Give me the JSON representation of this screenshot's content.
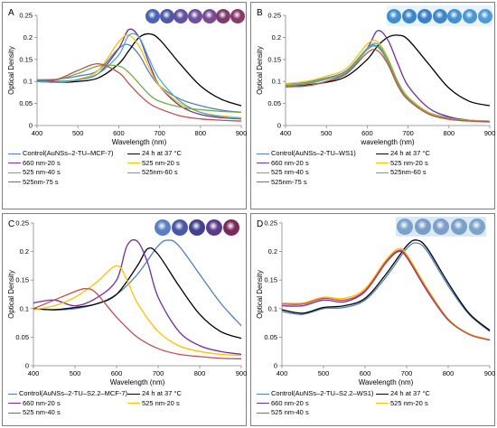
{
  "figure": {
    "panels": [
      {
        "label": "A",
        "box": "tl",
        "plot_bg": "#ffffff",
        "well_bg": "#ffffff",
        "well_colors": [
          "#4a63b8",
          "#4d5aa8",
          "#6350a0",
          "#6f4f9c",
          "#7a4a95",
          "#7d3b6e",
          "#8a3a6a"
        ]
      },
      {
        "label": "B",
        "box": "tr",
        "plot_bg": "#ffffff",
        "well_bg": "#e8f3fb",
        "well_colors": [
          "#3d8fd0",
          "#3a86c9",
          "#3b7fc6",
          "#3d86cc",
          "#4390d2",
          "#4a97d6",
          "#4c9bd8"
        ]
      },
      {
        "label": "C",
        "box": "bl",
        "plot_bg": "#ffffff",
        "well_bg": "#ffffff",
        "well_colors": [
          "#5a7fc4",
          "#4b58a8",
          "#42438f",
          "#5a3c8a",
          "#7a2a5a"
        ]
      },
      {
        "label": "D",
        "box": "br",
        "plot_bg": "#ffffff",
        "well_bg": "#dbe9f5",
        "well_colors": [
          "#7aa2cc",
          "#7a9dc8",
          "#7c9ec9",
          "#7aa0ca",
          "#7ba3cc"
        ]
      }
    ]
  },
  "chart_data": [
    {
      "type": "line",
      "panel": "A",
      "xlabel": "Wavelength (nm)",
      "ylabel": "Optical Density",
      "xlim": [
        400,
        900
      ],
      "ylim": [
        0,
        0.25
      ],
      "xticks": [
        "400",
        "500",
        "600",
        "700",
        "800",
        "900"
      ],
      "yticks": [
        "0",
        "0.05",
        "0.1",
        "0.15",
        "0.2",
        "0.25"
      ],
      "grid": false,
      "legend_placement": "bottom",
      "series": [
        {
          "name": "Control(AuNSs–2-TU–MCF-7)",
          "color": "#4f81bd",
          "x": [
            400,
            450,
            500,
            550,
            600,
            625,
            650,
            675,
            700,
            750,
            800,
            850,
            900
          ],
          "y": [
            0.104,
            0.105,
            0.112,
            0.125,
            0.175,
            0.183,
            0.16,
            0.12,
            0.09,
            0.06,
            0.045,
            0.035,
            0.03
          ]
        },
        {
          "name": "24 h at 37 °C",
          "color": "#000000",
          "x": [
            400,
            450,
            500,
            550,
            600,
            625,
            650,
            675,
            700,
            750,
            800,
            850,
            900
          ],
          "y": [
            0.1,
            0.098,
            0.1,
            0.108,
            0.14,
            0.17,
            0.2,
            0.208,
            0.195,
            0.14,
            0.09,
            0.06,
            0.045
          ]
        },
        {
          "name": "660 nm-20 s",
          "color": "#7030a0",
          "x": [
            400,
            450,
            500,
            550,
            600,
            625,
            650,
            675,
            700,
            750,
            800,
            850,
            900
          ],
          "y": [
            0.102,
            0.1,
            0.104,
            0.118,
            0.175,
            0.218,
            0.2,
            0.14,
            0.09,
            0.045,
            0.025,
            0.018,
            0.015
          ]
        },
        {
          "name": "525 nm-20 s",
          "color": "#ffc000",
          "x": [
            400,
            450,
            500,
            550,
            600,
            625,
            650,
            675,
            700,
            750,
            800,
            850,
            900
          ],
          "y": [
            0.1,
            0.098,
            0.105,
            0.125,
            0.19,
            0.205,
            0.18,
            0.13,
            0.09,
            0.05,
            0.03,
            0.022,
            0.018
          ]
        },
        {
          "name": "525 nm-40 s",
          "color": "#4bacc6",
          "x": [
            400,
            450,
            500,
            550,
            600,
            625,
            650,
            675,
            700,
            750,
            800,
            850,
            900
          ],
          "y": [
            0.1,
            0.098,
            0.104,
            0.118,
            0.16,
            0.205,
            0.2,
            0.15,
            0.105,
            0.055,
            0.03,
            0.02,
            0.016
          ]
        },
        {
          "name": "525nm-60 s",
          "color": "#70ad47",
          "x": [
            400,
            450,
            500,
            550,
            600,
            625,
            650,
            675,
            700,
            750,
            800,
            850,
            900
          ],
          "y": [
            0.102,
            0.104,
            0.118,
            0.135,
            0.135,
            0.12,
            0.095,
            0.07,
            0.055,
            0.042,
            0.036,
            0.032,
            0.03
          ]
        },
        {
          "name": "525nm-75 s",
          "color": "#c0504d",
          "x": [
            400,
            450,
            500,
            550,
            600,
            625,
            650,
            675,
            700,
            750,
            800,
            850,
            900
          ],
          "y": [
            0.101,
            0.105,
            0.125,
            0.14,
            0.12,
            0.095,
            0.07,
            0.05,
            0.038,
            0.022,
            0.015,
            0.012,
            0.01
          ]
        }
      ]
    },
    {
      "type": "line",
      "panel": "B",
      "xlabel": "wavelength (nm)",
      "ylabel": "Optical Density",
      "xlim": [
        400,
        900
      ],
      "ylim": [
        0,
        0.25
      ],
      "xticks": [
        "400",
        "500",
        "600",
        "700",
        "800",
        "900"
      ],
      "yticks": [
        "0",
        "0.05",
        "0.1",
        "0.15",
        "0.2",
        "0.25"
      ],
      "grid": false,
      "legend_placement": "bottom",
      "series": [
        {
          "name": "Control(AuNSs–2-TU–WS1)",
          "color": "#4f81bd",
          "x": [
            400,
            450,
            500,
            550,
            600,
            625,
            650,
            675,
            700,
            750,
            800,
            850,
            900
          ],
          "y": [
            0.095,
            0.098,
            0.108,
            0.125,
            0.175,
            0.18,
            0.15,
            0.1,
            0.065,
            0.03,
            0.018,
            0.012,
            0.01
          ]
        },
        {
          "name": "24 h at 37 °C",
          "color": "#000000",
          "x": [
            400,
            450,
            500,
            550,
            600,
            625,
            650,
            675,
            700,
            750,
            800,
            850,
            900
          ],
          "y": [
            0.09,
            0.092,
            0.098,
            0.112,
            0.15,
            0.18,
            0.2,
            0.205,
            0.195,
            0.14,
            0.085,
            0.055,
            0.045
          ]
        },
        {
          "name": "660 nm-20 s",
          "color": "#7030a0",
          "x": [
            400,
            450,
            500,
            550,
            600,
            625,
            650,
            675,
            700,
            750,
            800,
            850,
            900
          ],
          "y": [
            0.088,
            0.09,
            0.1,
            0.12,
            0.175,
            0.215,
            0.195,
            0.14,
            0.09,
            0.04,
            0.02,
            0.012,
            0.01
          ]
        },
        {
          "name": "525 nm-20 s",
          "color": "#ffc000",
          "x": [
            400,
            450,
            500,
            550,
            600,
            625,
            650,
            675,
            700,
            750,
            800,
            850,
            900
          ],
          "y": [
            0.095,
            0.1,
            0.112,
            0.13,
            0.185,
            0.19,
            0.155,
            0.1,
            0.065,
            0.03,
            0.016,
            0.012,
            0.01
          ]
        },
        {
          "name": "525 nm-40 s",
          "color": "#4bacc6",
          "x": [
            400,
            450,
            500,
            550,
            600,
            625,
            650,
            675,
            700,
            750,
            800,
            850,
            900
          ],
          "y": [
            0.092,
            0.095,
            0.105,
            0.122,
            0.175,
            0.185,
            0.15,
            0.098,
            0.062,
            0.028,
            0.015,
            0.011,
            0.009
          ]
        },
        {
          "name": "525nm-60 s",
          "color": "#70ad47",
          "x": [
            400,
            450,
            500,
            550,
            600,
            625,
            650,
            675,
            700,
            750,
            800,
            850,
            900
          ],
          "y": [
            0.09,
            0.094,
            0.105,
            0.12,
            0.172,
            0.178,
            0.145,
            0.095,
            0.06,
            0.027,
            0.015,
            0.011,
            0.009
          ]
        },
        {
          "name": "525nm-75 s",
          "color": "#c0504d",
          "x": [
            400,
            450,
            500,
            550,
            600,
            625,
            650,
            675,
            700,
            750,
            800,
            850,
            900
          ],
          "y": [
            0.088,
            0.09,
            0.1,
            0.118,
            0.165,
            0.17,
            0.14,
            0.09,
            0.058,
            0.026,
            0.014,
            0.01,
            0.008
          ]
        }
      ]
    },
    {
      "type": "line",
      "panel": "C",
      "xlabel": "Wavelength (nm)",
      "ylabel": "Optical Density",
      "xlim": [
        400,
        900
      ],
      "ylim": [
        0,
        0.25
      ],
      "xticks": [
        "400",
        "500",
        "600",
        "700",
        "800",
        "900"
      ],
      "yticks": [
        "0",
        "0.05",
        "0.1",
        "0.15",
        "0.2",
        "0.25"
      ],
      "grid": false,
      "legend_placement": "bottom",
      "series": [
        {
          "name": "Control(AuNSs–2-TU–S2.2–MCF-7)",
          "color": "#4f81bd",
          "x": [
            400,
            450,
            500,
            550,
            600,
            650,
            700,
            725,
            750,
            800,
            850,
            900
          ],
          "y": [
            0.1,
            0.098,
            0.1,
            0.108,
            0.125,
            0.16,
            0.21,
            0.22,
            0.21,
            0.16,
            0.11,
            0.07
          ]
        },
        {
          "name": "24 h at 37 °C",
          "color": "#000000",
          "x": [
            400,
            450,
            500,
            550,
            600,
            650,
            675,
            700,
            750,
            800,
            850,
            900
          ],
          "y": [
            0.1,
            0.098,
            0.102,
            0.108,
            0.125,
            0.175,
            0.205,
            0.195,
            0.14,
            0.09,
            0.06,
            0.048
          ]
        },
        {
          "name": "660 nm-20 s",
          "color": "#7030a0",
          "x": [
            400,
            450,
            500,
            550,
            600,
            625,
            650,
            675,
            700,
            750,
            800,
            850,
            900
          ],
          "y": [
            0.11,
            0.115,
            0.105,
            0.118,
            0.15,
            0.21,
            0.218,
            0.18,
            0.12,
            0.06,
            0.035,
            0.025,
            0.02
          ]
        },
        {
          "name": "525 nm-20 s",
          "color": "#ffc000",
          "x": [
            400,
            450,
            500,
            550,
            600,
            625,
            650,
            700,
            750,
            800,
            850,
            900
          ],
          "y": [
            0.098,
            0.105,
            0.12,
            0.145,
            0.175,
            0.15,
            0.11,
            0.06,
            0.035,
            0.025,
            0.02,
            0.018
          ]
        },
        {
          "name": "525 nm-40 s",
          "color": "#c0504d",
          "x": [
            400,
            450,
            500,
            525,
            550,
            600,
            650,
            700,
            750,
            800,
            850,
            900
          ],
          "y": [
            0.1,
            0.115,
            0.13,
            0.135,
            0.128,
            0.085,
            0.05,
            0.03,
            0.02,
            0.016,
            0.013,
            0.012
          ]
        }
      ]
    },
    {
      "type": "line",
      "panel": "D",
      "xlabel": "Wavelength (nm)",
      "ylabel": "Optical Density",
      "xlim": [
        400,
        900
      ],
      "ylim": [
        0,
        0.25
      ],
      "xticks": [
        "400",
        "500",
        "600",
        "700",
        "800",
        "900"
      ],
      "yticks": [
        "0",
        "0.05",
        "0.1",
        "0.15",
        "0.2",
        "0.25"
      ],
      "grid": false,
      "legend_placement": "bottom",
      "series": [
        {
          "name": "Control(AuNSs–2-TU–S2.2–WS1)",
          "color": "#4f81bd",
          "x": [
            400,
            450,
            500,
            550,
            600,
            650,
            700,
            725,
            750,
            800,
            850,
            900
          ],
          "y": [
            0.095,
            0.09,
            0.1,
            0.102,
            0.115,
            0.155,
            0.205,
            0.215,
            0.2,
            0.14,
            0.09,
            0.06
          ]
        },
        {
          "name": "24 h at 37 °C",
          "color": "#000000",
          "x": [
            400,
            450,
            500,
            550,
            600,
            650,
            700,
            725,
            750,
            800,
            850,
            900
          ],
          "y": [
            0.098,
            0.092,
            0.102,
            0.105,
            0.118,
            0.16,
            0.21,
            0.22,
            0.205,
            0.145,
            0.092,
            0.062
          ]
        },
        {
          "name": "660 nm-20 s",
          "color": "#7030a0",
          "x": [
            400,
            450,
            500,
            550,
            600,
            650,
            680,
            700,
            750,
            800,
            850,
            900
          ],
          "y": [
            0.105,
            0.105,
            0.115,
            0.112,
            0.13,
            0.18,
            0.2,
            0.19,
            0.13,
            0.08,
            0.055,
            0.045
          ]
        },
        {
          "name": "525 nm-20 s",
          "color": "#ffc000",
          "x": [
            400,
            450,
            500,
            550,
            600,
            650,
            680,
            700,
            750,
            800,
            850,
            900
          ],
          "y": [
            0.11,
            0.11,
            0.12,
            0.118,
            0.135,
            0.185,
            0.205,
            0.195,
            0.135,
            0.082,
            0.056,
            0.046
          ]
        },
        {
          "name": "525 nm-40 s",
          "color": "#c0504d",
          "x": [
            400,
            450,
            500,
            550,
            600,
            650,
            680,
            700,
            750,
            800,
            850,
            900
          ],
          "y": [
            0.108,
            0.108,
            0.118,
            0.115,
            0.132,
            0.182,
            0.202,
            0.192,
            0.132,
            0.081,
            0.055,
            0.045
          ]
        }
      ]
    }
  ]
}
